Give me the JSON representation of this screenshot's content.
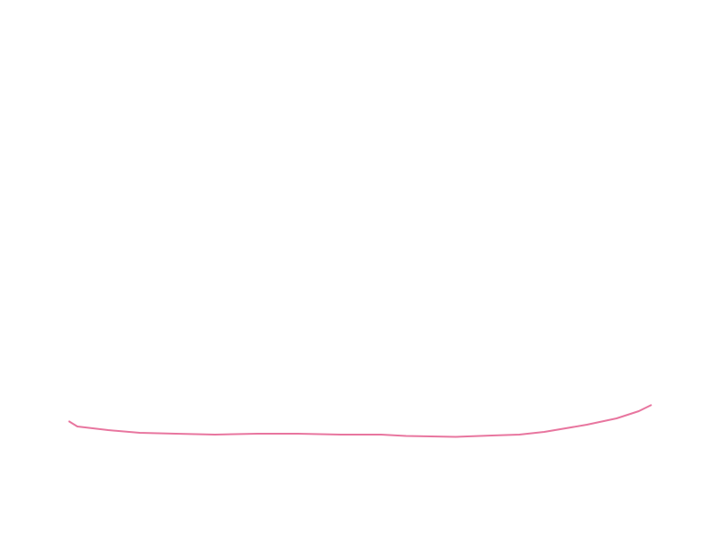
{
  "chart_data": {
    "type": "line",
    "title": "",
    "xlabel": "",
    "ylabel": "",
    "xlim": [
      0,
      100
    ],
    "ylim": [
      -100,
      500
    ],
    "grid": false,
    "axes_visible": false,
    "legend": "none",
    "series": [
      {
        "color": "#e8769f",
        "x": [
          0,
          1.5,
          6.8,
          12.2,
          18.4,
          25.1,
          32.4,
          39.3,
          46.7,
          53.6,
          57.9,
          66.4,
          72.6,
          77.3,
          81.6,
          88.9,
          94.0,
          97.8,
          100
        ],
        "y": [
          33,
          27,
          23,
          20,
          19,
          18,
          19,
          19,
          18,
          18,
          16.5,
          15.5,
          17,
          18,
          21,
          29,
          36,
          44,
          51
        ]
      }
    ]
  }
}
